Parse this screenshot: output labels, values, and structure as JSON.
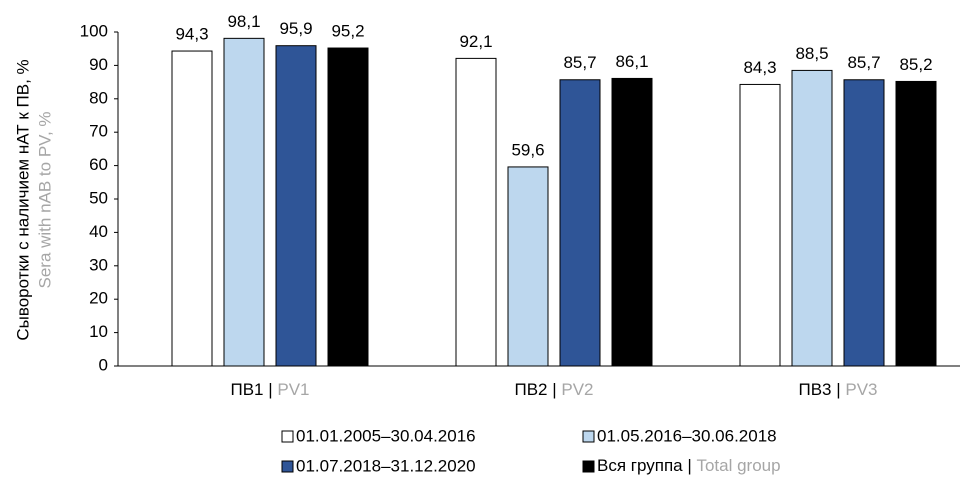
{
  "chart_data": {
    "type": "bar",
    "ylabel": [
      "Сыворотки с наличием нАТ к ПВ, %",
      "Sera with nAB to PV, %"
    ],
    "categories": [
      "ПВ1 | PV1",
      "ПВ2 | PV2",
      "ПВ3 | PV3"
    ],
    "series": [
      {
        "name": "01.01.2005–30.04.2016",
        "color": "#ffffff",
        "values": [
          94.3,
          92.1,
          84.3
        ],
        "value_labels": [
          "94,3",
          "92,1",
          "84,3"
        ]
      },
      {
        "name": "01.05.2016–30.06.2018",
        "color": "#bdd7ee",
        "values": [
          98.1,
          59.6,
          88.5
        ],
        "value_labels": [
          "98,1",
          "59,6",
          "88,5"
        ]
      },
      {
        "name": "01.07.2018–31.12.2020",
        "color": "#2f5597",
        "values": [
          95.9,
          85.7,
          85.7
        ],
        "value_labels": [
          "95,9",
          "85,7",
          "85,7"
        ]
      },
      {
        "name": "Вся группа | Total group",
        "color": "#000000",
        "values": [
          95.2,
          86.1,
          85.2
        ],
        "value_labels": [
          "95,2",
          "86,1",
          "85,2"
        ]
      }
    ],
    "ylim": [
      0,
      100
    ],
    "yticks": [
      0,
      10,
      20,
      30,
      40,
      50,
      60,
      70,
      80,
      90,
      100
    ],
    "grid": false,
    "legend": "bottom"
  }
}
